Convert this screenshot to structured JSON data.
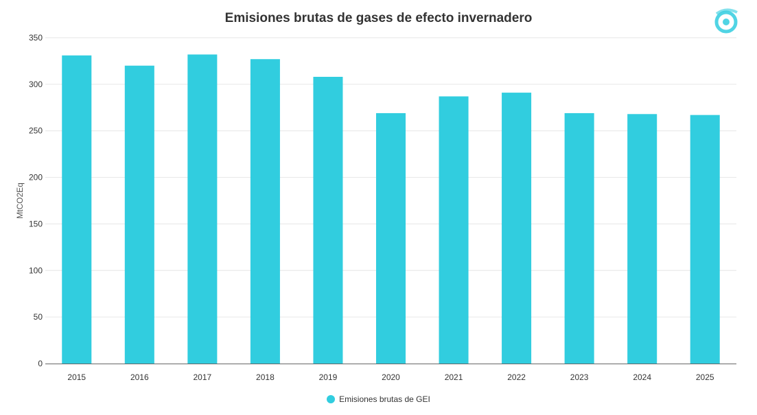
{
  "chart_data": {
    "type": "bar",
    "title": "Emisiones brutas de gases de efecto invernadero",
    "xlabel": "",
    "ylabel": "MtCO2Eq",
    "ylim": [
      0,
      350
    ],
    "yticks": [
      "0",
      "50",
      "100",
      "150",
      "200",
      "250",
      "300",
      "350"
    ],
    "categories": [
      "2015",
      "2016",
      "2017",
      "2018",
      "2019",
      "2020",
      "2021",
      "2022",
      "2023",
      "2024",
      "2025"
    ],
    "series": [
      {
        "name": "Emisiones brutas de GEI",
        "color": "#31cddf",
        "values": [
          331,
          320,
          332,
          327,
          308,
          269,
          287,
          291,
          269,
          268,
          267
        ]
      }
    ],
    "grid": true,
    "legend_position": "bottom"
  },
  "logo": {
    "icon": "brand-logo-icon",
    "color": "#31cddf"
  }
}
